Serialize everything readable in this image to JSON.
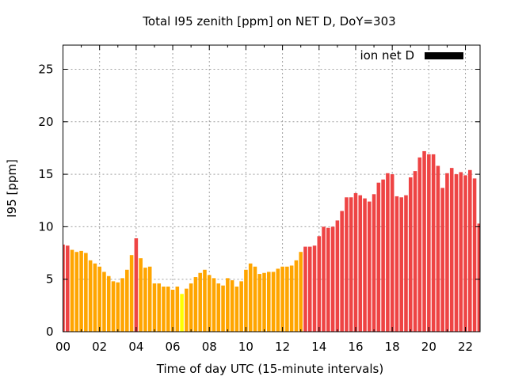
{
  "chart_data": {
    "type": "bar",
    "title": "Total I95 zenith [ppm] on NET D, DoY=303",
    "xlabel": "Time of day UTC (15-minute intervals)",
    "ylabel": "I95 [ppm]",
    "xlim_hours": [
      0,
      22.8
    ],
    "ylim": [
      0,
      27.3
    ],
    "x_ticks": [
      "00",
      "02",
      "04",
      "06",
      "08",
      "10",
      "12",
      "14",
      "16",
      "18",
      "20",
      "22"
    ],
    "x_tick_hours": [
      0,
      2,
      4,
      6,
      8,
      10,
      12,
      14,
      16,
      18,
      20,
      22
    ],
    "y_ticks": [
      0,
      5,
      10,
      15,
      20,
      25
    ],
    "grid": true,
    "legend": {
      "label": "ion net D",
      "placement": "top-right",
      "color": "#000000"
    },
    "interval_minutes": 15,
    "color_thresholds": {
      "yellow_below": 4,
      "red_at_or_above": 8
    },
    "colors": {
      "low": "#ffff00",
      "mid": "#ffa500",
      "high": "#ee4444"
    },
    "values": [
      8.3,
      8.2,
      7.8,
      7.6,
      7.7,
      7.5,
      6.8,
      6.5,
      6.2,
      5.7,
      5.3,
      4.8,
      4.7,
      5.1,
      5.9,
      7.3,
      8.9,
      7.0,
      6.1,
      6.2,
      4.6,
      4.6,
      4.3,
      4.3,
      4.0,
      4.3,
      3.6,
      4.1,
      4.6,
      5.2,
      5.6,
      5.9,
      5.4,
      5.1,
      4.6,
      4.4,
      5.1,
      4.9,
      4.3,
      4.8,
      5.9,
      6.5,
      6.2,
      5.5,
      5.6,
      5.7,
      5.7,
      6.0,
      6.2,
      6.2,
      6.3,
      6.8,
      7.6,
      8.1,
      8.1,
      8.2,
      9.1,
      10.0,
      9.9,
      10.0,
      10.6,
      11.5,
      12.8,
      12.8,
      13.2,
      13.0,
      12.7,
      12.4,
      13.1,
      14.2,
      14.5,
      15.1,
      15.0,
      12.9,
      12.8,
      13.0,
      14.7,
      15.3,
      16.6,
      17.2,
      16.9,
      16.9,
      15.8,
      13.7,
      15.1,
      15.6,
      15.0,
      15.2,
      14.9,
      15.4,
      14.6,
      10.3
    ]
  }
}
